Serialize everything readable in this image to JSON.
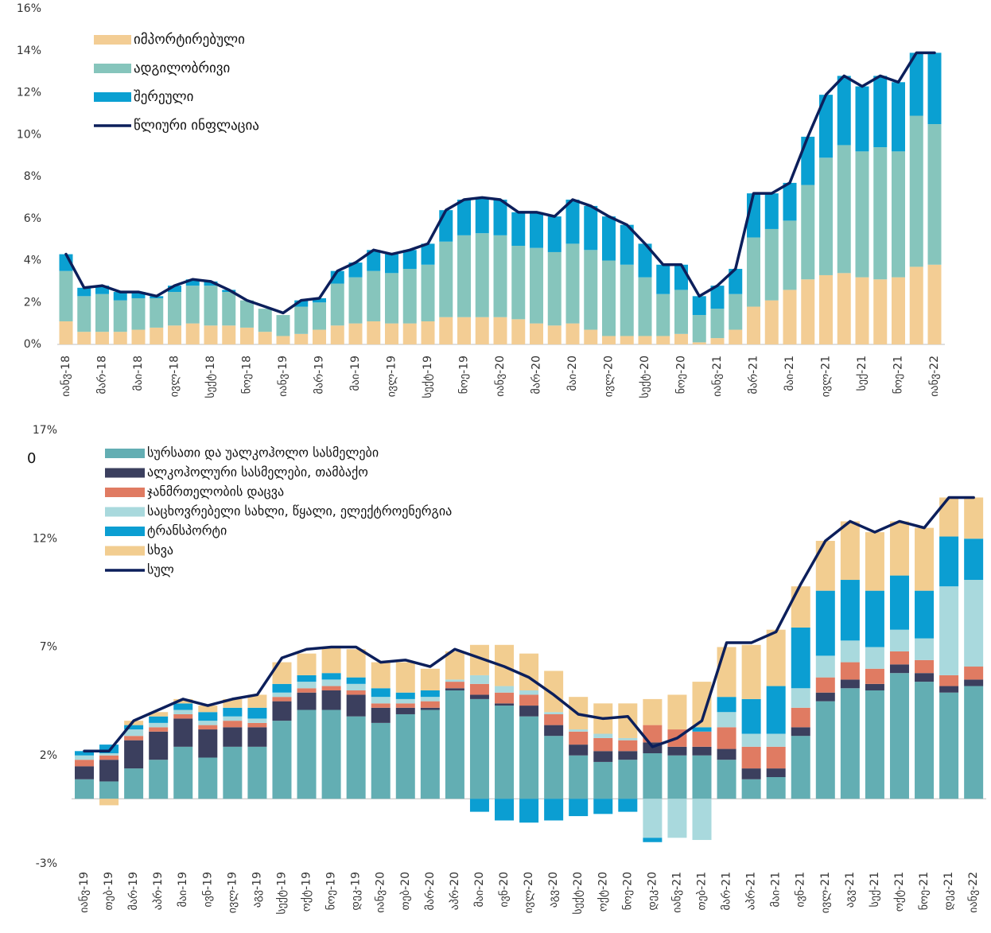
{
  "chart_data": [
    {
      "type": "bar",
      "stacked": true,
      "legend": "upper left",
      "categories": [
        "იანვ-18",
        null,
        "მარ-18",
        null,
        "მაი-18",
        null,
        "ივლ-18",
        null,
        "სექტ-18",
        null,
        "ნოე-18",
        null,
        "იანვ-19",
        null,
        "მარ-19",
        null,
        "მაი-19",
        null,
        "ივლ-19",
        null,
        "სექტ-19",
        null,
        "ნოე-19",
        null,
        "იანვ-20",
        null,
        "მარ-20",
        null,
        "მაი-20",
        null,
        "ივლ-20",
        null,
        "სექტ-20",
        null,
        "ნოე-20",
        null,
        "იანვ-21",
        null,
        "მარ-21",
        null,
        "მაი-21",
        null,
        "ივლ-21",
        null,
        "სექ-21",
        null,
        "ნოე-21",
        null,
        "იანვ-22"
      ],
      "ylim": [
        0,
        16
      ],
      "yticks": [
        {
          "value": 0,
          "label": "0%"
        },
        {
          "value": 2,
          "label": "2%"
        },
        {
          "value": 4,
          "label": "4%"
        },
        {
          "value": 6,
          "label": "6%"
        },
        {
          "value": 8,
          "label": "8%"
        },
        {
          "value": 10,
          "label": "10%"
        },
        {
          "value": 12,
          "label": "12%"
        },
        {
          "value": 14,
          "label": "14%"
        },
        {
          "value": 16,
          "label": "16%"
        }
      ],
      "series": [
        {
          "name": "იმპორტირებული",
          "color": "#f3cd94",
          "values": [
            1.1,
            0.6,
            0.6,
            0.6,
            0.7,
            0.8,
            0.9,
            1.0,
            0.9,
            0.9,
            0.8,
            0.6,
            0.4,
            0.5,
            0.7,
            0.9,
            1.0,
            1.1,
            1.0,
            1.0,
            1.1,
            1.3,
            1.3,
            1.3,
            1.3,
            1.2,
            1.0,
            0.9,
            1.0,
            0.7,
            0.4,
            0.4,
            0.4,
            0.4,
            0.5,
            0.1,
            0.3,
            0.7,
            1.8,
            2.1,
            2.6,
            3.1,
            3.3,
            3.4,
            3.2,
            3.1,
            3.2,
            3.7,
            3.8
          ]
        },
        {
          "name": "ადგილობრივი",
          "color": "#86c5bc",
          "values": [
            2.4,
            1.7,
            1.8,
            1.5,
            1.5,
            1.4,
            1.6,
            1.8,
            1.9,
            1.6,
            1.3,
            1.1,
            1.0,
            1.3,
            1.3,
            2.0,
            2.2,
            2.4,
            2.4,
            2.6,
            2.7,
            3.6,
            3.9,
            4.0,
            3.9,
            3.5,
            3.6,
            3.5,
            3.8,
            3.8,
            3.6,
            3.4,
            2.8,
            2.0,
            2.1,
            1.3,
            1.4,
            1.7,
            3.3,
            3.4,
            3.3,
            4.5,
            5.6,
            6.1,
            6.0,
            6.3,
            6.0,
            7.2,
            6.7
          ]
        },
        {
          "name": "შერეული",
          "color": "#0aa0d2",
          "values": [
            0.8,
            0.4,
            0.4,
            0.4,
            0.3,
            0.1,
            0.3,
            0.3,
            0.2,
            0.1,
            0.0,
            0.0,
            0.0,
            0.3,
            0.2,
            0.6,
            0.7,
            1.0,
            0.9,
            0.9,
            1.0,
            1.5,
            1.7,
            1.7,
            1.7,
            1.6,
            1.7,
            1.7,
            2.1,
            2.1,
            2.1,
            1.9,
            1.6,
            1.4,
            1.2,
            0.9,
            1.1,
            1.2,
            2.1,
            1.7,
            1.8,
            2.3,
            3.0,
            3.3,
            3.1,
            3.4,
            3.3,
            3.0,
            3.4
          ]
        },
        {
          "name": "წლიური ინფლაცია",
          "color": "#0c1f5b",
          "type": "line",
          "values": [
            4.3,
            2.7,
            2.8,
            2.5,
            2.5,
            2.3,
            2.8,
            3.1,
            3.0,
            2.6,
            2.1,
            1.8,
            1.5,
            2.1,
            2.2,
            3.5,
            3.9,
            4.5,
            4.3,
            4.5,
            4.8,
            6.4,
            6.9,
            7.0,
            6.9,
            6.3,
            6.3,
            6.1,
            6.9,
            6.6,
            6.1,
            5.7,
            4.8,
            3.8,
            3.8,
            2.3,
            2.8,
            3.6,
            7.2,
            7.2,
            7.7,
            9.9,
            11.9,
            12.8,
            12.3,
            12.8,
            12.5,
            13.9,
            13.9
          ]
        }
      ]
    },
    {
      "type": "bar",
      "stacked": true,
      "legend": "upper left",
      "annotation": "0",
      "categories": [
        "იანვ-19",
        "თებ-19",
        "მარ-19",
        "აპრ-19",
        "მაი-19",
        "ივნ-19",
        "ივლ-19",
        "აგვ-19",
        "სექტ-19",
        "ოქტ-19",
        "ნოე-19",
        "დეკ-19",
        "იანვ-20",
        "თებ-20",
        "მარ-20",
        "აპრ-20",
        "მაი-20",
        "ივნ-20",
        "ივლ-20",
        "აგვ-20",
        "სექტ-20",
        "ოქტ-20",
        "ნოე-20",
        "დეკ-20",
        "იანვ-21",
        "თებ-21",
        "მარ-21",
        "აპრ-21",
        "მაი-21",
        "ივნ-21",
        "ივლ-21",
        "აგვ-21",
        "სექ-21",
        "ოქტ-21",
        "ნოე-21",
        "დეკ-21",
        "იანვ-22"
      ],
      "ylim": [
        -3,
        17
      ],
      "yticks": [
        {
          "value": -3,
          "label": "-3%"
        },
        {
          "value": 2,
          "label": "2%"
        },
        {
          "value": 7,
          "label": "7%"
        },
        {
          "value": 12,
          "label": "12%"
        },
        {
          "value": 17,
          "label": "17%"
        }
      ],
      "series": [
        {
          "name": "სურსათი და უალკოჰოლო სასმელები",
          "color": "#63aeb3",
          "values": [
            0.9,
            0.8,
            1.4,
            1.8,
            2.4,
            1.9,
            2.4,
            2.4,
            3.6,
            4.1,
            4.1,
            3.8,
            3.5,
            3.9,
            4.1,
            5.0,
            4.6,
            4.3,
            3.8,
            2.9,
            2.0,
            1.7,
            1.8,
            2.1,
            2.0,
            2.0,
            1.8,
            0.9,
            1.0,
            2.9,
            4.5,
            5.1,
            5.0,
            5.8,
            5.4,
            4.9,
            5.2
          ]
        },
        {
          "name": "ალკოჰოლური სასმელები, თამბაქო",
          "color": "#3b3f5e",
          "values": [
            0.6,
            1.0,
            1.3,
            1.3,
            1.3,
            1.3,
            0.9,
            0.9,
            0.9,
            0.8,
            0.9,
            1.0,
            0.7,
            0.3,
            0.1,
            0.1,
            0.2,
            0.1,
            0.5,
            0.5,
            0.5,
            0.5,
            0.4,
            0.5,
            0.4,
            0.4,
            0.5,
            0.5,
            0.4,
            0.4,
            0.4,
            0.4,
            0.3,
            0.4,
            0.4,
            0.3,
            0.3
          ]
        },
        {
          "name": "ჯანმრთელობის დაცვა",
          "color": "#e07b62",
          "values": [
            0.3,
            0.2,
            0.2,
            0.2,
            0.2,
            0.2,
            0.3,
            0.2,
            0.2,
            0.2,
            0.2,
            0.2,
            0.2,
            0.2,
            0.3,
            0.3,
            0.5,
            0.5,
            0.5,
            0.5,
            0.6,
            0.6,
            0.5,
            0.8,
            0.8,
            0.7,
            1.0,
            1.0,
            1.0,
            0.9,
            0.7,
            0.8,
            0.7,
            0.6,
            0.6,
            0.5,
            0.6
          ]
        },
        {
          "name": "საცხოვრებელი სახლი, წყალი, ელექტროენერგია",
          "color": "#a9d9dd",
          "values": [
            0.2,
            0.1,
            0.3,
            0.2,
            0.2,
            0.2,
            0.2,
            0.2,
            0.2,
            0.3,
            0.3,
            0.3,
            0.3,
            0.2,
            0.2,
            0.1,
            0.4,
            0.3,
            0.2,
            0.1,
            0.1,
            0.2,
            0.1,
            -1.8,
            -1.8,
            -1.9,
            0.7,
            0.6,
            0.6,
            0.9,
            1.0,
            1.0,
            1.0,
            1.0,
            1.0,
            4.1,
            4.0
          ]
        },
        {
          "name": "ტრანსპორტი",
          "color": "#0b9ed2",
          "values": [
            0.2,
            0.4,
            0.2,
            0.3,
            0.3,
            0.4,
            0.4,
            0.5,
            0.4,
            0.3,
            0.3,
            0.3,
            0.4,
            0.3,
            0.3,
            0.0,
            -0.6,
            -1.0,
            -1.1,
            -1.0,
            -0.8,
            -0.7,
            -0.6,
            -0.2,
            0.0,
            0.2,
            0.7,
            1.6,
            2.2,
            2.8,
            3.0,
            2.8,
            2.6,
            2.5,
            2.2,
            2.3,
            1.9
          ]
        },
        {
          "name": "სხვა",
          "color": "#f2cd90",
          "values": [
            0.0,
            -0.3,
            0.2,
            0.2,
            0.2,
            0.3,
            0.4,
            0.6,
            1.0,
            1.0,
            1.2,
            1.3,
            1.2,
            1.4,
            1.0,
            1.3,
            1.4,
            1.9,
            1.7,
            1.9,
            1.5,
            1.4,
            1.6,
            1.2,
            1.6,
            2.1,
            2.3,
            2.5,
            2.6,
            1.9,
            2.3,
            2.7,
            2.7,
            2.5,
            2.9,
            1.8,
            1.9
          ]
        },
        {
          "name": "სულ",
          "color": "#0c1f5b",
          "type": "line",
          "values": [
            2.2,
            2.2,
            3.6,
            4.1,
            4.6,
            4.3,
            4.6,
            4.8,
            6.5,
            6.9,
            7.0,
            7.0,
            6.3,
            6.4,
            6.1,
            6.9,
            6.5,
            6.1,
            5.6,
            4.8,
            3.9,
            3.7,
            3.8,
            2.4,
            2.8,
            3.6,
            7.2,
            7.2,
            7.7,
            9.9,
            11.9,
            12.8,
            12.3,
            12.8,
            12.5,
            13.9,
            13.9
          ]
        }
      ]
    }
  ]
}
